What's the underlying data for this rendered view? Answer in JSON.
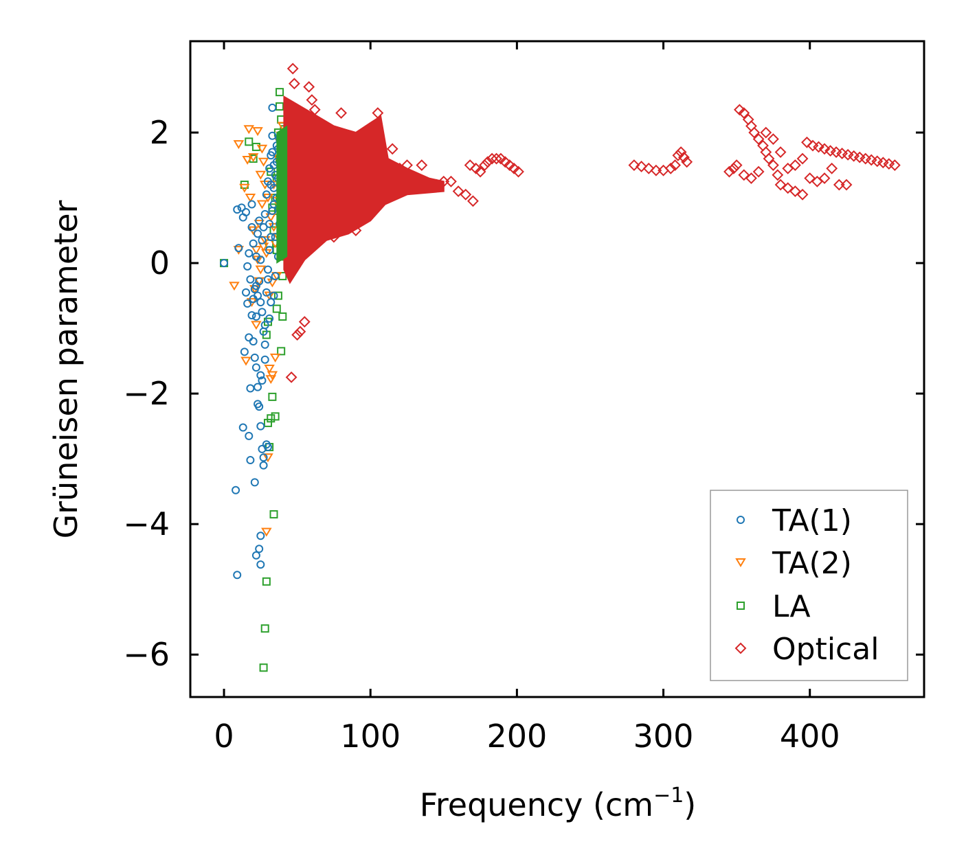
{
  "chart_data": {
    "type": "scatter",
    "title": "",
    "xlabel": "Frequency (cm",
    "xlabel_sup": "−1",
    "xlabel_end": ")",
    "ylabel": "Grüneisen parameter",
    "xlim": [
      -23,
      478
    ],
    "ylim": [
      -6.65,
      3.4
    ],
    "xticks": [
      0,
      100,
      200,
      300,
      400
    ],
    "yticks": [
      -6,
      -4,
      -2,
      0,
      2
    ],
    "xtick_labels": [
      "0",
      "100",
      "200",
      "300",
      "400"
    ],
    "ytick_labels": [
      "−6",
      "−4",
      "−2",
      "0",
      "2"
    ],
    "legend_position": "lower-right",
    "series": [
      {
        "name": "TA(1)",
        "color": "#1f77b4",
        "marker": "circle",
        "points": [
          [
            0,
            0
          ],
          [
            8,
            -3.48
          ],
          [
            9,
            -4.78
          ],
          [
            10,
            0.23
          ],
          [
            9,
            0.82
          ],
          [
            12,
            0.85
          ],
          [
            13,
            0.7
          ],
          [
            13,
            -2.52
          ],
          [
            14,
            -1.36
          ],
          [
            15,
            0.78
          ],
          [
            16,
            -0.62
          ],
          [
            17,
            -1.14
          ],
          [
            17,
            -2.65
          ],
          [
            18,
            -3.02
          ],
          [
            18,
            -1.92
          ],
          [
            19,
            0.9
          ],
          [
            20,
            0.3
          ],
          [
            21,
            -3.36
          ],
          [
            22,
            -0.82
          ],
          [
            22,
            -4.48
          ],
          [
            23,
            -2.16
          ],
          [
            24,
            -4.38
          ],
          [
            25,
            -1.72
          ],
          [
            25,
            -4.62
          ],
          [
            26,
            -1.8
          ],
          [
            26,
            -2.85
          ],
          [
            27,
            -3.1
          ],
          [
            27,
            -2.98
          ],
          [
            28,
            -1.25
          ],
          [
            28,
            -1.48
          ],
          [
            29,
            -2.78
          ],
          [
            30,
            -2.82
          ],
          [
            31,
            -0.85
          ],
          [
            32,
            -0.6
          ],
          [
            33,
            2.38
          ],
          [
            34,
            -0.5
          ],
          [
            25,
            -4.18
          ],
          [
            30,
            -0.1
          ],
          [
            31,
            0.6
          ],
          [
            32,
            1.2
          ],
          [
            33,
            1.7
          ],
          [
            33,
            1.95
          ],
          [
            34,
            1.5
          ],
          [
            34,
            0.9
          ],
          [
            35,
            0.4
          ],
          [
            35,
            -0.2
          ],
          [
            36,
            1.0
          ],
          [
            36,
            1.8
          ],
          [
            37,
            1.3
          ],
          [
            37,
            0.1
          ],
          [
            38,
            0.6
          ],
          [
            22,
            -0.35
          ],
          [
            23,
            -0.5
          ],
          [
            24,
            -0.28
          ],
          [
            25,
            0.05
          ],
          [
            26,
            0.35
          ],
          [
            27,
            0.55
          ],
          [
            28,
            0.75
          ],
          [
            29,
            1.05
          ],
          [
            30,
            1.25
          ],
          [
            31,
            1.45
          ],
          [
            32,
            1.65
          ],
          [
            19,
            -0.8
          ],
          [
            20,
            -0.55
          ],
          [
            21,
            -0.4
          ],
          [
            22,
            0.1
          ],
          [
            23,
            0.45
          ],
          [
            24,
            0.65
          ],
          [
            25,
            -0.6
          ],
          [
            26,
            -0.75
          ],
          [
            27,
            -1.05
          ],
          [
            28,
            -0.95
          ],
          [
            29,
            -0.45
          ],
          [
            30,
            -0.25
          ],
          [
            31,
            0.2
          ],
          [
            32,
            0.4
          ],
          [
            33,
            0.8
          ],
          [
            34,
            1.15
          ],
          [
            35,
            1.35
          ],
          [
            36,
            1.55
          ],
          [
            37,
            1.75
          ],
          [
            38,
            1.9
          ],
          [
            15,
            -0.45
          ],
          [
            16,
            -0.05
          ],
          [
            17,
            0.15
          ],
          [
            18,
            -0.25
          ],
          [
            19,
            0.55
          ],
          [
            20,
            -1.2
          ],
          [
            21,
            -1.45
          ],
          [
            22,
            -1.6
          ],
          [
            23,
            -1.9
          ],
          [
            24,
            -2.2
          ],
          [
            25,
            -2.5
          ]
        ]
      },
      {
        "name": "TA(2)",
        "color": "#ff7f0e",
        "marker": "triangle-down",
        "points": [
          [
            7,
            -0.35
          ],
          [
            10,
            0.2
          ],
          [
            10,
            1.82
          ],
          [
            14,
            1.15
          ],
          [
            15,
            -1.5
          ],
          [
            16,
            1.58
          ],
          [
            17,
            2.05
          ],
          [
            20,
            1.62
          ],
          [
            22,
            -0.95
          ],
          [
            23,
            2.02
          ],
          [
            24,
            -0.28
          ],
          [
            25,
            1.35
          ],
          [
            26,
            1.75
          ],
          [
            27,
            1.55
          ],
          [
            28,
            1.2
          ],
          [
            29,
            -4.12
          ],
          [
            30,
            -2.98
          ],
          [
            31,
            -1.62
          ],
          [
            32,
            -1.78
          ],
          [
            33,
            -1.72
          ],
          [
            34,
            1.2
          ],
          [
            35,
            -1.45
          ],
          [
            36,
            -0.2
          ],
          [
            37,
            0.4
          ],
          [
            38,
            1.85
          ],
          [
            39,
            0.8
          ],
          [
            40,
            1.3
          ],
          [
            18,
            1.0
          ],
          [
            20,
            0.5
          ],
          [
            22,
            0.2
          ],
          [
            24,
            0.6
          ],
          [
            26,
            0.9
          ],
          [
            28,
            0.35
          ],
          [
            30,
            1.0
          ],
          [
            32,
            0.7
          ],
          [
            34,
            0.55
          ],
          [
            36,
            0.95
          ],
          [
            38,
            1.15
          ],
          [
            40,
            0.45
          ],
          [
            19,
            -0.6
          ],
          [
            21,
            -0.4
          ],
          [
            23,
            0.05
          ],
          [
            25,
            -0.1
          ],
          [
            27,
            0.25
          ],
          [
            29,
            0.15
          ],
          [
            31,
            -0.5
          ],
          [
            33,
            -0.3
          ],
          [
            35,
            0.3
          ],
          [
            37,
            1.6
          ],
          [
            39,
            1.95
          ],
          [
            40,
            2.1
          ]
        ]
      },
      {
        "name": "LA",
        "color": "#2ca02c",
        "marker": "square",
        "points": [
          [
            0,
            0
          ],
          [
            14,
            1.2
          ],
          [
            17,
            1.86
          ],
          [
            20,
            1.6
          ],
          [
            22,
            1.78
          ],
          [
            27,
            -6.2
          ],
          [
            28,
            -5.6
          ],
          [
            29,
            -4.88
          ],
          [
            30,
            -2.45
          ],
          [
            31,
            -2.82
          ],
          [
            32,
            -2.38
          ],
          [
            33,
            -2.05
          ],
          [
            34,
            -3.85
          ],
          [
            35,
            -2.35
          ],
          [
            36,
            -0.7
          ],
          [
            37,
            -0.5
          ],
          [
            38,
            2.62
          ],
          [
            39,
            -1.35
          ],
          [
            40,
            -0.82
          ],
          [
            41,
            2.05
          ],
          [
            38,
            1.0
          ],
          [
            39,
            1.4
          ],
          [
            40,
            1.8
          ],
          [
            41,
            0.6
          ],
          [
            42,
            0.3
          ],
          [
            36,
            0.2
          ],
          [
            37,
            0.8
          ],
          [
            38,
            1.6
          ],
          [
            39,
            0.4
          ],
          [
            40,
            1.1
          ],
          [
            41,
            1.5
          ],
          [
            42,
            0.9
          ],
          [
            43,
            1.2
          ],
          [
            42,
            1.9
          ],
          [
            41,
            0.1
          ],
          [
            40,
            -0.2
          ],
          [
            39,
            2.2
          ],
          [
            38,
            2.4
          ],
          [
            37,
            2.0
          ],
          [
            36,
            1.3
          ],
          [
            35,
            1.0
          ],
          [
            34,
            0.5
          ],
          [
            33,
            0.85
          ],
          [
            32,
            1.4
          ],
          [
            31,
            0.3
          ],
          [
            43,
            0.7
          ],
          [
            43,
            1.6
          ],
          [
            42,
            0.45
          ],
          [
            40,
            0.75
          ],
          [
            41,
            1.25
          ],
          [
            29,
            -1.1
          ],
          [
            30,
            -0.9
          ]
        ]
      },
      {
        "name": "Optical",
        "color": "#d62728",
        "marker": "diamond",
        "points": [
          [
            47,
            2.98
          ],
          [
            46,
            -1.75
          ],
          [
            48,
            2.75
          ],
          [
            50,
            -1.1
          ],
          [
            52,
            -1.05
          ],
          [
            55,
            -0.9
          ],
          [
            58,
            2.7
          ],
          [
            60,
            2.5
          ],
          [
            62,
            2.35
          ],
          [
            64,
            2.1
          ],
          [
            66,
            1.9
          ],
          [
            70,
            0.5
          ],
          [
            75,
            0.4
          ],
          [
            80,
            2.3
          ],
          [
            85,
            0.6
          ],
          [
            90,
            0.5
          ],
          [
            95,
            0.7
          ],
          [
            100,
            0.8
          ],
          [
            105,
            2.3
          ],
          [
            110,
            1.4
          ],
          [
            115,
            1.75
          ],
          [
            120,
            1.45
          ],
          [
            125,
            1.5
          ],
          [
            130,
            1.3
          ],
          [
            135,
            1.5
          ],
          [
            140,
            1.2
          ],
          [
            145,
            1.2
          ],
          [
            150,
            1.25
          ],
          [
            155,
            1.25
          ],
          [
            160,
            1.1
          ],
          [
            165,
            1.05
          ],
          [
            170,
            0.95
          ],
          [
            168,
            1.5
          ],
          [
            172,
            1.45
          ],
          [
            175,
            1.4
          ],
          [
            178,
            1.5
          ],
          [
            180,
            1.55
          ],
          [
            183,
            1.6
          ],
          [
            186,
            1.6
          ],
          [
            189,
            1.6
          ],
          [
            192,
            1.55
          ],
          [
            195,
            1.5
          ],
          [
            198,
            1.45
          ],
          [
            201,
            1.4
          ],
          [
            280,
            1.5
          ],
          [
            285,
            1.48
          ],
          [
            290,
            1.45
          ],
          [
            295,
            1.42
          ],
          [
            300,
            1.42
          ],
          [
            305,
            1.45
          ],
          [
            308,
            1.5
          ],
          [
            310,
            1.65
          ],
          [
            312,
            1.7
          ],
          [
            314,
            1.62
          ],
          [
            316,
            1.55
          ],
          [
            345,
            1.4
          ],
          [
            350,
            1.5
          ],
          [
            352,
            2.35
          ],
          [
            355,
            2.3
          ],
          [
            358,
            2.2
          ],
          [
            360,
            2.1
          ],
          [
            362,
            2.0
          ],
          [
            365,
            1.9
          ],
          [
            368,
            1.8
          ],
          [
            370,
            1.7
          ],
          [
            372,
            1.6
          ],
          [
            375,
            1.5
          ],
          [
            378,
            1.35
          ],
          [
            380,
            1.2
          ],
          [
            385,
            1.15
          ],
          [
            390,
            1.1
          ],
          [
            395,
            1.05
          ],
          [
            398,
            1.85
          ],
          [
            402,
            1.8
          ],
          [
            406,
            1.78
          ],
          [
            410,
            1.75
          ],
          [
            414,
            1.72
          ],
          [
            418,
            1.7
          ],
          [
            422,
            1.68
          ],
          [
            426,
            1.66
          ],
          [
            430,
            1.64
          ],
          [
            434,
            1.62
          ],
          [
            438,
            1.6
          ],
          [
            442,
            1.58
          ],
          [
            446,
            1.56
          ],
          [
            450,
            1.54
          ],
          [
            454,
            1.52
          ],
          [
            458,
            1.5
          ],
          [
            420,
            1.2
          ],
          [
            415,
            1.45
          ],
          [
            410,
            1.3
          ],
          [
            405,
            1.25
          ],
          [
            400,
            1.3
          ],
          [
            395,
            1.6
          ],
          [
            390,
            1.5
          ],
          [
            385,
            1.45
          ],
          [
            380,
            1.7
          ],
          [
            375,
            1.9
          ],
          [
            370,
            2.0
          ],
          [
            365,
            1.4
          ],
          [
            360,
            1.3
          ],
          [
            355,
            1.35
          ],
          [
            348,
            1.45
          ],
          [
            425,
            1.2
          ]
        ]
      }
    ]
  }
}
